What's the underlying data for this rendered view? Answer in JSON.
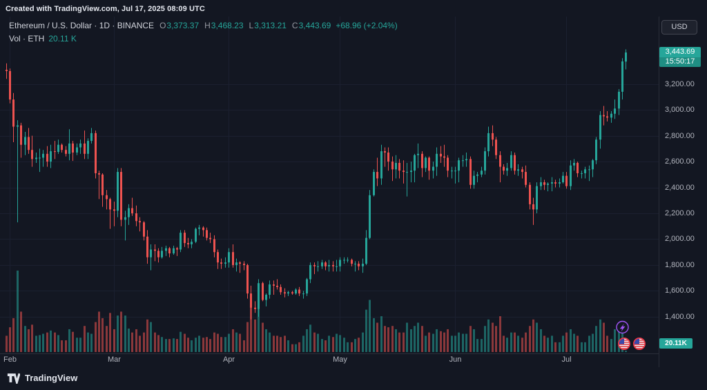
{
  "header": {
    "created_text": "Created with TradingView.com, Jul 17, 2025 08:09 UTC"
  },
  "legend": {
    "symbol_text": "Ethereum / U.S. Dollar · 1D · BINANCE",
    "o_label": "O",
    "o_value": "3,373.37",
    "h_label": "H",
    "h_value": "3,468.23",
    "l_label": "L",
    "l_value": "3,313.21",
    "c_label": "C",
    "c_value": "3,443.69",
    "change_text": "+68.96 (+2.04%)",
    "vol_label": "Vol · ETH",
    "vol_value": "20.11 K"
  },
  "price_axis": {
    "currency_button": "USD",
    "labels": [
      "3,200.00",
      "3,000.00",
      "2,800.00",
      "2,600.00",
      "2,400.00",
      "2,200.00",
      "2,000.00",
      "1,800.00",
      "1,600.00",
      "1,400.00"
    ],
    "last_price": "3,443.69",
    "countdown": "15:50:17",
    "volume_badge": "20.11K"
  },
  "time_axis": {
    "labels": [
      "Feb",
      "Mar",
      "Apr",
      "May",
      "Jun",
      "Jul"
    ]
  },
  "footer": {
    "brand": "TradingView"
  },
  "colors": {
    "background": "#131722",
    "up": "#26a69a",
    "down": "#ef5350",
    "volume_up": "rgba(38,166,154,0.55)",
    "volume_down": "rgba(239,83,80,0.55)",
    "grid": "#1b2030",
    "separator": "#2a2e39",
    "axis_text": "#b2b5be",
    "badge_bg": "#26a69a",
    "event_purple": "#a155f7",
    "event_red": "#f23645",
    "event_blue": "#3949ab"
  },
  "chart_data": {
    "type": "candlestick",
    "title": "Ethereum / U.S. Dollar, 1D, BINANCE",
    "start_date": "2025-01-31",
    "interval": "1D",
    "ohlcv_format": [
      "open",
      "high",
      "low",
      "close",
      "volume_kETH"
    ],
    "ylim": [
      1330,
      3540
    ],
    "y_ticks": [
      3200,
      3000,
      2800,
      2600,
      2400,
      2200,
      2000,
      1800,
      1600,
      1400
    ],
    "month_ticks": [
      {
        "label": "Feb",
        "index": 1
      },
      {
        "label": "Mar",
        "index": 29
      },
      {
        "label": "Apr",
        "index": 60
      },
      {
        "label": "May",
        "index": 90
      },
      {
        "label": "Jun",
        "index": 121
      },
      {
        "label": "Jul",
        "index": 151
      }
    ],
    "volume_max_kETH": 1250,
    "right_padding_slots": 8,
    "last": {
      "open": 3373.37,
      "high": 3468.23,
      "low": 3313.21,
      "close": 3443.69,
      "change": 68.96,
      "change_pct": 2.04,
      "volume_kETH": 20.11
    },
    "candles": [
      [
        3310,
        3360,
        3240,
        3300,
        250
      ],
      [
        3300,
        3320,
        3050,
        3080,
        380
      ],
      [
        3080,
        3130,
        2750,
        2870,
        520
      ],
      [
        2870,
        2920,
        2130,
        2880,
        1250
      ],
      [
        2880,
        2900,
        2630,
        2730,
        620
      ],
      [
        2730,
        2830,
        2650,
        2790,
        400
      ],
      [
        2790,
        2860,
        2660,
        2690,
        350
      ],
      [
        2690,
        2800,
        2560,
        2620,
        420
      ],
      [
        2620,
        2670,
        2590,
        2630,
        250
      ],
      [
        2630,
        2700,
        2520,
        2630,
        260
      ],
      [
        2630,
        2690,
        2560,
        2660,
        280
      ],
      [
        2660,
        2720,
        2560,
        2600,
        300
      ],
      [
        2600,
        2730,
        2550,
        2680,
        330
      ],
      [
        2680,
        2760,
        2620,
        2675,
        300
      ],
      [
        2675,
        2770,
        2660,
        2730,
        260
      ],
      [
        2730,
        2740,
        2670,
        2690,
        180
      ],
      [
        2690,
        2720,
        2640,
        2660,
        180
      ],
      [
        2660,
        2850,
        2610,
        2740,
        350
      ],
      [
        2740,
        2760,
        2605,
        2670,
        310
      ],
      [
        2670,
        2740,
        2650,
        2710,
        220
      ],
      [
        2710,
        2770,
        2660,
        2740,
        220
      ],
      [
        2740,
        2840,
        2620,
        2660,
        400
      ],
      [
        2660,
        2780,
        2620,
        2760,
        300
      ],
      [
        2760,
        2860,
        2740,
        2820,
        280
      ],
      [
        2820,
        2840,
        2470,
        2510,
        460
      ],
      [
        2510,
        2530,
        2310,
        2500,
        620
      ],
      [
        2500,
        2510,
        2250,
        2340,
        520
      ],
      [
        2340,
        2380,
        2230,
        2310,
        400
      ],
      [
        2310,
        2320,
        2080,
        2230,
        600
      ],
      [
        2230,
        2290,
        2100,
        2220,
        350
      ],
      [
        2220,
        2550,
        2170,
        2520,
        560
      ],
      [
        2520,
        2550,
        2100,
        2150,
        620
      ],
      [
        2150,
        2220,
        1990,
        2170,
        560
      ],
      [
        2170,
        2270,
        2110,
        2240,
        360
      ],
      [
        2240,
        2320,
        2180,
        2200,
        300
      ],
      [
        2200,
        2260,
        2100,
        2140,
        350
      ],
      [
        2140,
        2170,
        2060,
        2130,
        250
      ],
      [
        2130,
        2140,
        1990,
        2020,
        300
      ],
      [
        2020,
        2070,
        1810,
        1860,
        500
      ],
      [
        1860,
        1960,
        1760,
        1920,
        460
      ],
      [
        1920,
        1960,
        1830,
        1910,
        300
      ],
      [
        1910,
        1930,
        1820,
        1860,
        260
      ],
      [
        1860,
        1940,
        1850,
        1910,
        230
      ],
      [
        1910,
        1950,
        1870,
        1930,
        200
      ],
      [
        1930,
        1940,
        1860,
        1890,
        200
      ],
      [
        1890,
        1950,
        1880,
        1930,
        210
      ],
      [
        1930,
        1940,
        1870,
        1920,
        200
      ],
      [
        1920,
        2070,
        1900,
        2050,
        310
      ],
      [
        2050,
        2070,
        1940,
        1970,
        280
      ],
      [
        1970,
        2010,
        1930,
        1960,
        220
      ],
      [
        1960,
        2000,
        1930,
        1980,
        180
      ],
      [
        1980,
        2090,
        1970,
        2080,
        220
      ],
      [
        2080,
        2110,
        2030,
        2090,
        250
      ],
      [
        2090,
        2100,
        2020,
        2070,
        220
      ],
      [
        2070,
        2090,
        1990,
        2010,
        230
      ],
      [
        2010,
        2050,
        1970,
        2000,
        200
      ],
      [
        2000,
        2030,
        1860,
        1900,
        300
      ],
      [
        1900,
        1920,
        1770,
        1820,
        280
      ],
      [
        1820,
        1850,
        1770,
        1810,
        230
      ],
      [
        1810,
        1860,
        1780,
        1820,
        230
      ],
      [
        1820,
        1930,
        1780,
        1900,
        280
      ],
      [
        1900,
        1960,
        1780,
        1800,
        350
      ],
      [
        1800,
        1850,
        1750,
        1820,
        300
      ],
      [
        1820,
        1830,
        1740,
        1810,
        280
      ],
      [
        1810,
        1830,
        1760,
        1800,
        180
      ],
      [
        1800,
        1810,
        1540,
        1580,
        460
      ],
      [
        1580,
        1640,
        1380,
        1470,
        850
      ],
      [
        1470,
        1520,
        1430,
        1460,
        500
      ],
      [
        1460,
        1690,
        1400,
        1660,
        700
      ],
      [
        1660,
        1670,
        1520,
        1530,
        450
      ],
      [
        1530,
        1580,
        1480,
        1570,
        350
      ],
      [
        1570,
        1680,
        1540,
        1650,
        300
      ],
      [
        1650,
        1680,
        1570,
        1640,
        250
      ],
      [
        1640,
        1690,
        1610,
        1630,
        250
      ],
      [
        1630,
        1650,
        1570,
        1590,
        230
      ],
      [
        1590,
        1620,
        1550,
        1580,
        250
      ],
      [
        1580,
        1600,
        1560,
        1590,
        180
      ],
      [
        1590,
        1600,
        1570,
        1580,
        120
      ],
      [
        1580,
        1620,
        1570,
        1610,
        120
      ],
      [
        1610,
        1630,
        1560,
        1580,
        150
      ],
      [
        1580,
        1600,
        1540,
        1580,
        250
      ],
      [
        1580,
        1700,
        1560,
        1690,
        350
      ],
      [
        1690,
        1820,
        1660,
        1800,
        420
      ],
      [
        1800,
        1820,
        1730,
        1790,
        300
      ],
      [
        1790,
        1830,
        1750,
        1790,
        280
      ],
      [
        1790,
        1840,
        1770,
        1820,
        200
      ],
      [
        1820,
        1830,
        1760,
        1790,
        180
      ],
      [
        1790,
        1840,
        1750,
        1800,
        250
      ],
      [
        1800,
        1830,
        1750,
        1790,
        230
      ],
      [
        1790,
        1840,
        1750,
        1790,
        280
      ],
      [
        1790,
        1860,
        1750,
        1840,
        260
      ],
      [
        1840,
        1860,
        1810,
        1840,
        220
      ],
      [
        1840,
        1860,
        1820,
        1840,
        150
      ],
      [
        1840,
        1850,
        1790,
        1810,
        150
      ],
      [
        1810,
        1830,
        1750,
        1810,
        200
      ],
      [
        1810,
        1830,
        1760,
        1790,
        220
      ],
      [
        1790,
        1850,
        1740,
        1810,
        300
      ],
      [
        1810,
        2070,
        1800,
        2010,
        650
      ],
      [
        2010,
        2380,
        2000,
        2340,
        800
      ],
      [
        2340,
        2540,
        2330,
        2520,
        520
      ],
      [
        2520,
        2630,
        2410,
        2470,
        450
      ],
      [
        2470,
        2730,
        2420,
        2680,
        550
      ],
      [
        2680,
        2710,
        2560,
        2670,
        400
      ],
      [
        2670,
        2710,
        2530,
        2600,
        380
      ],
      [
        2600,
        2640,
        2450,
        2540,
        400
      ],
      [
        2540,
        2650,
        2470,
        2590,
        350
      ],
      [
        2590,
        2620,
        2470,
        2530,
        300
      ],
      [
        2530,
        2610,
        2430,
        2520,
        300
      ],
      [
        2520,
        2590,
        2330,
        2520,
        450
      ],
      [
        2520,
        2600,
        2440,
        2530,
        350
      ],
      [
        2530,
        2660,
        2440,
        2650,
        400
      ],
      [
        2650,
        2740,
        2550,
        2660,
        450
      ],
      [
        2660,
        2680,
        2480,
        2550,
        400
      ],
      [
        2550,
        2640,
        2520,
        2630,
        250
      ],
      [
        2630,
        2640,
        2460,
        2530,
        300
      ],
      [
        2530,
        2600,
        2470,
        2560,
        280
      ],
      [
        2560,
        2710,
        2490,
        2660,
        350
      ],
      [
        2660,
        2720,
        2590,
        2640,
        320
      ],
      [
        2640,
        2730,
        2560,
        2630,
        300
      ],
      [
        2630,
        2650,
        2480,
        2530,
        350
      ],
      [
        2530,
        2560,
        2470,
        2530,
        250
      ],
      [
        2530,
        2560,
        2430,
        2530,
        250
      ],
      [
        2530,
        2630,
        2440,
        2610,
        300
      ],
      [
        2610,
        2650,
        2560,
        2610,
        280
      ],
      [
        2610,
        2670,
        2560,
        2620,
        280
      ],
      [
        2620,
        2640,
        2390,
        2420,
        400
      ],
      [
        2420,
        2530,
        2390,
        2490,
        350
      ],
      [
        2490,
        2520,
        2440,
        2500,
        200
      ],
      [
        2500,
        2560,
        2480,
        2530,
        200
      ],
      [
        2530,
        2710,
        2500,
        2680,
        400
      ],
      [
        2680,
        2870,
        2640,
        2820,
        500
      ],
      [
        2820,
        2880,
        2720,
        2770,
        450
      ],
      [
        2770,
        2790,
        2620,
        2650,
        400
      ],
      [
        2650,
        2680,
        2440,
        2560,
        550
      ],
      [
        2560,
        2580,
        2500,
        2530,
        250
      ],
      [
        2530,
        2590,
        2490,
        2550,
        220
      ],
      [
        2550,
        2680,
        2530,
        2650,
        300
      ],
      [
        2650,
        2670,
        2500,
        2530,
        300
      ],
      [
        2530,
        2580,
        2490,
        2540,
        250
      ],
      [
        2540,
        2560,
        2470,
        2520,
        220
      ],
      [
        2520,
        2570,
        2400,
        2420,
        300
      ],
      [
        2420,
        2440,
        2230,
        2270,
        400
      ],
      [
        2270,
        2320,
        2110,
        2230,
        500
      ],
      [
        2230,
        2440,
        2200,
        2410,
        450
      ],
      [
        2410,
        2480,
        2380,
        2440,
        350
      ],
      [
        2440,
        2460,
        2380,
        2420,
        250
      ],
      [
        2420,
        2440,
        2370,
        2430,
        220
      ],
      [
        2430,
        2480,
        2370,
        2440,
        250
      ],
      [
        2440,
        2460,
        2400,
        2430,
        150
      ],
      [
        2430,
        2470,
        2400,
        2440,
        150
      ],
      [
        2440,
        2520,
        2430,
        2490,
        250
      ],
      [
        2490,
        2520,
        2390,
        2410,
        300
      ],
      [
        2410,
        2610,
        2380,
        2570,
        350
      ],
      [
        2570,
        2620,
        2530,
        2590,
        280
      ],
      [
        2590,
        2600,
        2480,
        2510,
        250
      ],
      [
        2510,
        2530,
        2470,
        2510,
        150
      ],
      [
        2510,
        2560,
        2470,
        2540,
        150
      ],
      [
        2540,
        2570,
        2450,
        2540,
        250
      ],
      [
        2540,
        2620,
        2480,
        2610,
        280
      ],
      [
        2610,
        2790,
        2580,
        2770,
        400
      ],
      [
        2770,
        2990,
        2700,
        2960,
        500
      ],
      [
        2960,
        3030,
        2880,
        2950,
        450
      ],
      [
        2950,
        2990,
        2910,
        2940,
        250
      ],
      [
        2940,
        2990,
        2900,
        2970,
        200
      ],
      [
        2970,
        3080,
        2930,
        3010,
        350
      ],
      [
        3010,
        3160,
        2960,
        3140,
        400
      ],
      [
        3140,
        3400,
        3080,
        3374.73,
        420
      ],
      [
        3373.37,
        3468.23,
        3313.21,
        3443.69,
        20.11
      ]
    ]
  }
}
